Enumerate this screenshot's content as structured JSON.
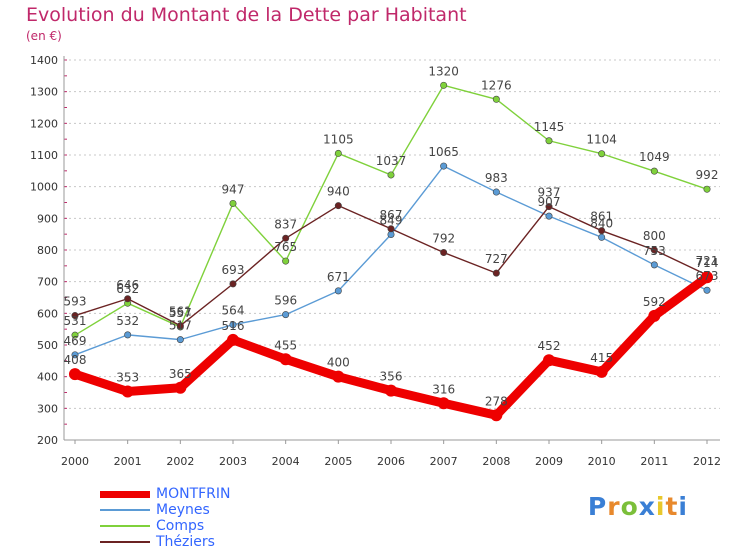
{
  "header": {
    "title": "Evolution du Montant de la Dette par Habitant",
    "subtitle": "(en €)"
  },
  "logo": {
    "text": "Proxiti"
  },
  "chart_data": {
    "type": "line",
    "title": "Evolution du Montant de la Dette par Habitant",
    "subtitle": "(en €)",
    "xlabel": "",
    "ylabel": "",
    "x": [
      "2000",
      "2001",
      "2002",
      "2003",
      "2004",
      "2005",
      "2006",
      "2007",
      "2008",
      "2009",
      "2010",
      "2011",
      "2012"
    ],
    "ylim": [
      200,
      1400
    ],
    "yticks": [
      200,
      300,
      400,
      500,
      600,
      700,
      800,
      900,
      1000,
      1100,
      1200,
      1300,
      1400
    ],
    "grid": "horizontal-dashed",
    "legend_position": "bottom-left",
    "series": [
      {
        "name": "MONTFRIN",
        "color": "#ee0000",
        "values": [
          408,
          353,
          365,
          516,
          455,
          400,
          356,
          316,
          278,
          452,
          415,
          592,
          714
        ]
      },
      {
        "name": "Meynes",
        "color": "#5b9bd5",
        "values": [
          469,
          532,
          517,
          564,
          596,
          671,
          849,
          1065,
          983,
          907,
          840,
          753,
          673
        ]
      },
      {
        "name": "Comps",
        "color": "#7fd13b",
        "values": [
          531,
          632,
          557,
          947,
          765,
          1105,
          1037,
          1320,
          1276,
          1145,
          1104,
          1049,
          992
        ]
      },
      {
        "name": "Théziers",
        "color": "#6b2323",
        "values": [
          593,
          646,
          561,
          693,
          837,
          940,
          867,
          792,
          727,
          937,
          861,
          800,
          721
        ]
      }
    ]
  }
}
